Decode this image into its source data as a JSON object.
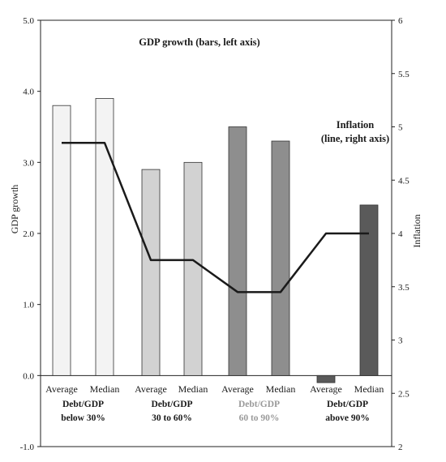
{
  "chart_data": {
    "type": "bar",
    "left_axis": {
      "label": "GDP growth",
      "ylim": [
        -1.0,
        5.0
      ],
      "ticks": [
        "5.0",
        "4.0",
        "3.0",
        "2.0",
        "1.0",
        "0.0",
        "-1.0"
      ]
    },
    "right_axis": {
      "label": "Inflation",
      "ylim": [
        2,
        6
      ],
      "ticks": [
        "6",
        "5.5",
        "5",
        "4.5",
        "4",
        "3.5",
        "3",
        "2.5",
        "2"
      ]
    },
    "categories": [
      "Average",
      "Median",
      "Average",
      "Median",
      "Average",
      "Median",
      "Average",
      "Median"
    ],
    "groups": [
      {
        "label_lines": [
          "Debt/GDP",
          "below 30%"
        ],
        "color": "#f3f3f3"
      },
      {
        "label_lines": [
          "Debt/GDP",
          "30 to 60%"
        ],
        "color": "#d2d2d2"
      },
      {
        "label_lines": [
          "Debt/GDP",
          "60 to 90%"
        ],
        "color": "#8e8e8e"
      },
      {
        "label_lines": [
          "Debt/GDP",
          "above 90%"
        ],
        "color": "#5a5a5a"
      }
    ],
    "series": [
      {
        "name": "GDP growth",
        "type": "bar",
        "axis": "left",
        "values": [
          3.8,
          3.9,
          2.9,
          3.0,
          3.5,
          3.3,
          -0.1,
          2.4
        ]
      },
      {
        "name": "Inflation",
        "type": "line",
        "axis": "right",
        "values": [
          4.85,
          4.85,
          3.75,
          3.75,
          3.45,
          3.45,
          4.0,
          4.0
        ]
      }
    ],
    "annotations": [
      {
        "text": "GDP growth (bars, left axis)"
      },
      {
        "text_lines": [
          "Inflation",
          "(line, right axis)"
        ]
      }
    ],
    "grid": false,
    "legend": "none"
  }
}
